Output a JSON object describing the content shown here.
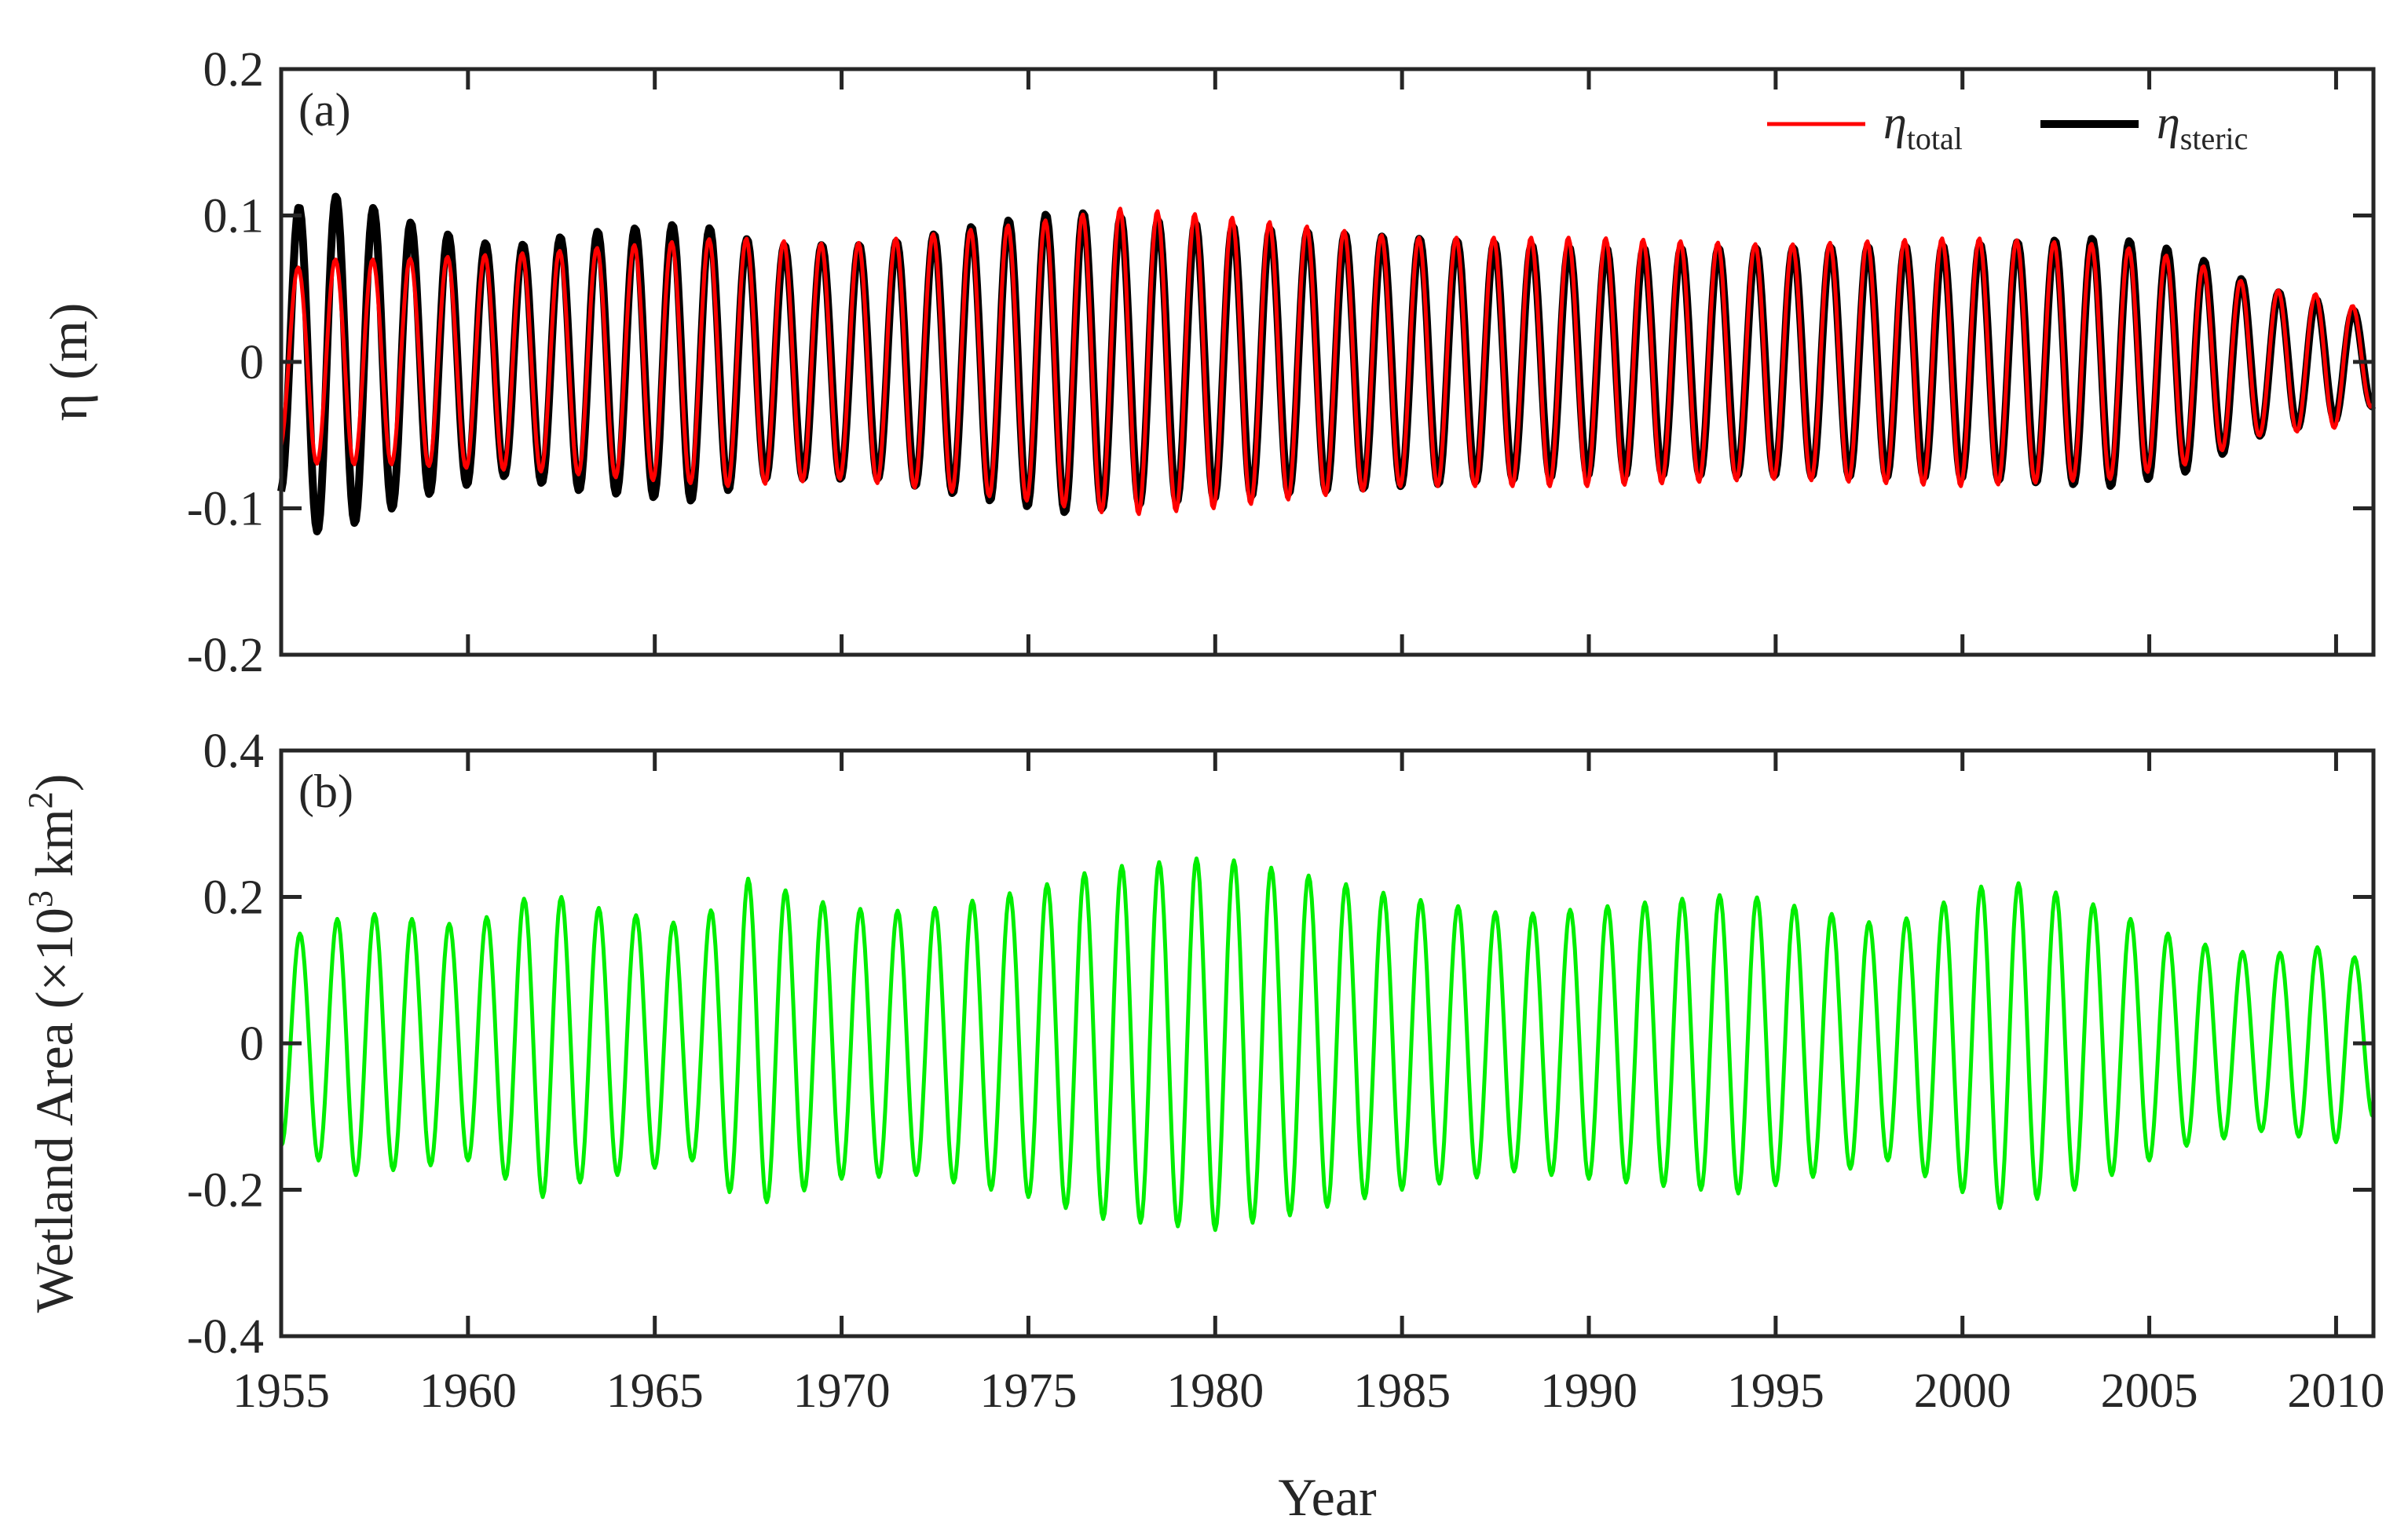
{
  "chart_data": [
    {
      "type": "line",
      "panel_label": "(a)",
      "xlabel": "",
      "ylabel": "η (m)",
      "xlim": [
        1955,
        2011
      ],
      "ylim": [
        -0.2,
        0.2
      ],
      "xticks": [
        1955,
        1960,
        1965,
        1970,
        1975,
        1980,
        1985,
        1990,
        1995,
        2000,
        2005,
        2010
      ],
      "yticks": [
        -0.2,
        -0.1,
        0,
        0.1,
        0.2
      ],
      "ytick_labels": [
        "-0.2",
        "-0.1",
        "0",
        "0.1",
        "0.2"
      ],
      "grid": false,
      "legend_position": "top-right",
      "legend": [
        {
          "base": "η",
          "sub": "total",
          "color": "#ff0000"
        },
        {
          "base": "η",
          "sub": "steric",
          "color": "#000000"
        }
      ],
      "series": [
        {
          "name": "η_total",
          "color": "#ff0000",
          "form": "annual cycle",
          "phase_year_fraction": 0.45,
          "amplitude_envelope": {
            "x": [
              1955,
              1956,
              1958,
              1962,
              1967,
              1970,
              1975,
              1977.5,
              1980,
              1985,
              1990,
              1995,
              2000,
              2004,
              2006,
              2008,
              2010,
              2011
            ],
            "y": [
              0.06,
              0.07,
              0.07,
              0.075,
              0.085,
              0.08,
              0.095,
              0.105,
              0.1,
              0.085,
              0.085,
              0.08,
              0.085,
              0.08,
              0.07,
              0.05,
              0.045,
              0.03
            ]
          },
          "linewidth": 5
        },
        {
          "name": "η_steric",
          "color": "#000000",
          "form": "annual cycle",
          "phase_year_fraction": 0.47,
          "amplitude_envelope": {
            "x": [
              1955,
              1955.8,
              1957,
              1959,
              1961,
              1963,
              1966,
              1968,
              1971,
              1974,
              1976,
              1978,
              1982,
              1985,
              1990,
              1995,
              2000,
              2004,
              2006,
              2008,
              2010,
              2011
            ],
            "y": [
              0.09,
              0.117,
              0.11,
              0.09,
              0.078,
              0.088,
              0.095,
              0.08,
              0.08,
              0.095,
              0.103,
              0.098,
              0.09,
              0.085,
              0.078,
              0.078,
              0.08,
              0.085,
              0.075,
              0.05,
              0.04,
              0.03
            ]
          },
          "linewidth": 10
        }
      ]
    },
    {
      "type": "line",
      "panel_label": "(b)",
      "xlabel": "Year",
      "ylabel": "Wetland Area (×10³ km²)",
      "ylabel_parts": {
        "pre": "Wetland Area (×10",
        "sup1": "3",
        "mid": " km",
        "sup2": "2",
        "post": ")"
      },
      "xlim": [
        1955,
        2011
      ],
      "ylim": [
        -0.4,
        0.4
      ],
      "xticks": [
        1955,
        1960,
        1965,
        1970,
        1975,
        1980,
        1985,
        1990,
        1995,
        2000,
        2005,
        2010
      ],
      "xtick_labels": [
        "1955",
        "1960",
        "1965",
        "1970",
        "1975",
        "1980",
        "1985",
        "1990",
        "1995",
        "2000",
        "2005",
        "2010"
      ],
      "yticks": [
        -0.4,
        -0.2,
        0,
        0.2,
        0.4
      ],
      "ytick_labels": [
        "-0.4",
        "-0.2",
        "0",
        "0.2",
        "0.4"
      ],
      "grid": false,
      "series": [
        {
          "name": "",
          "color": "#00ee00",
          "form": "annual cycle",
          "phase_year_fraction": 0.5,
          "amplitude_envelope": {
            "x": [
              1955,
              1957,
              1960,
              1962,
              1963,
              1966,
              1967.5,
              1970,
              1972,
              1975,
              1977,
              1980,
              1982,
              1985,
              1988,
              1990,
              1994,
              1998,
              2001,
              2003,
              2006,
              2008,
              2010,
              2011
            ],
            "y": [
              0.14,
              0.18,
              0.16,
              0.21,
              0.19,
              0.16,
              0.225,
              0.185,
              0.18,
              0.21,
              0.24,
              0.255,
              0.235,
              0.2,
              0.175,
              0.185,
              0.205,
              0.16,
              0.225,
              0.2,
              0.14,
              0.12,
              0.135,
              0.1
            ]
          },
          "linewidth": 5
        }
      ]
    }
  ]
}
